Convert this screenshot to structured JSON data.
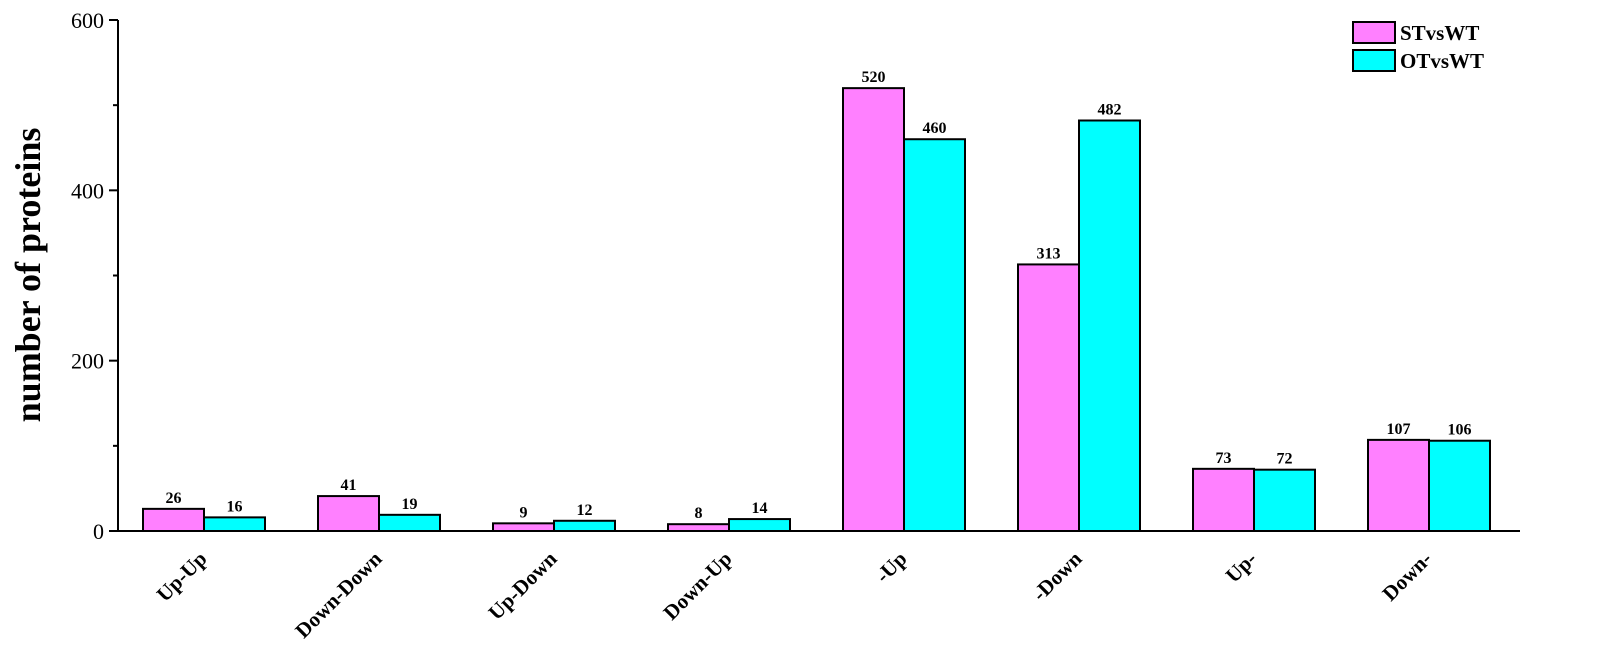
{
  "chart_data": {
    "type": "bar",
    "title": "",
    "xlabel": "",
    "ylabel": "number of proteins",
    "ylim": [
      0,
      600
    ],
    "yticks": [
      0,
      200,
      400,
      600
    ],
    "grid": false,
    "legend_position": "top-right",
    "categories": [
      "Up-Up",
      "Down-Down",
      "Up-Down",
      "Down-Up",
      "-Up",
      "-Down",
      "Up-",
      "Down-"
    ],
    "series": [
      {
        "name": "STvsWT",
        "color": "#ff80ff",
        "values": [
          26,
          41,
          9,
          8,
          520,
          313,
          73,
          107
        ]
      },
      {
        "name": "OTvsWT",
        "color": "#00ffff",
        "values": [
          16,
          19,
          12,
          14,
          460,
          482,
          72,
          106
        ]
      }
    ]
  }
}
